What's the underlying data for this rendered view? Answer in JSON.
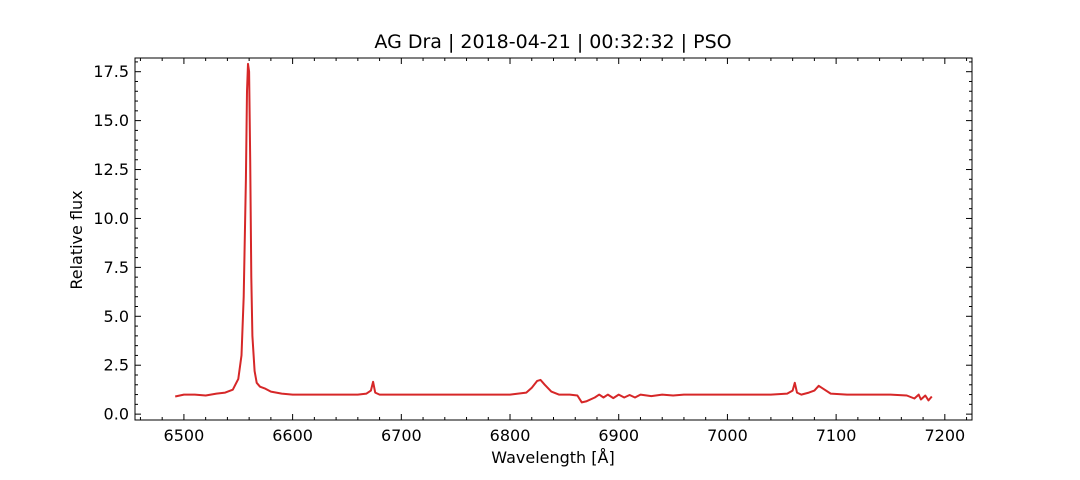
{
  "chart_data": {
    "type": "line",
    "title": "AG Dra | 2018-04-21 | 00:32:32 | PSO",
    "xlabel": "Wavelength [Å]",
    "ylabel": "Relative flux",
    "xlim": [
      6455,
      7225
    ],
    "ylim": [
      -0.3,
      18.2
    ],
    "x_ticks": [
      6500,
      6600,
      6700,
      6800,
      6900,
      7000,
      7100,
      7200
    ],
    "x_tick_labels": [
      "6500",
      "6600",
      "6700",
      "6800",
      "6900",
      "7000",
      "7100",
      "7200"
    ],
    "y_ticks": [
      0.0,
      2.5,
      5.0,
      7.5,
      10.0,
      12.5,
      15.0,
      17.5
    ],
    "y_tick_labels": [
      "0.0",
      "2.5",
      "5.0",
      "7.5",
      "10.0",
      "12.5",
      "15.0",
      "17.5"
    ],
    "grid": false,
    "series": [
      {
        "color": "#d62728",
        "x": [
          6492,
          6500,
          6510,
          6520,
          6530,
          6538,
          6545,
          6550,
          6553,
          6555,
          6557,
          6558,
          6559,
          6560,
          6561,
          6562,
          6563,
          6565,
          6567,
          6570,
          6575,
          6580,
          6590,
          6600,
          6620,
          6640,
          6660,
          6668,
          6672,
          6674,
          6676,
          6680,
          6700,
          6720,
          6740,
          6760,
          6780,
          6800,
          6815,
          6820,
          6825,
          6828,
          6832,
          6838,
          6845,
          6855,
          6862,
          6866,
          6870,
          6878,
          6882,
          6886,
          6890,
          6895,
          6900,
          6905,
          6910,
          6915,
          6920,
          6930,
          6940,
          6950,
          6960,
          6980,
          7000,
          7020,
          7040,
          7055,
          7060,
          7062,
          7064,
          7068,
          7075,
          7080,
          7084,
          7088,
          7095,
          7110,
          7130,
          7150,
          7165,
          7172,
          7176,
          7178,
          7182,
          7185,
          7188
        ],
        "y": [
          0.9,
          1.0,
          1.0,
          0.95,
          1.05,
          1.1,
          1.25,
          1.8,
          3.0,
          6.0,
          12.0,
          16.5,
          17.9,
          17.5,
          13.0,
          7.0,
          4.0,
          2.2,
          1.6,
          1.4,
          1.3,
          1.15,
          1.05,
          1.0,
          1.0,
          1.0,
          1.0,
          1.05,
          1.2,
          1.65,
          1.1,
          1.0,
          1.0,
          1.0,
          1.0,
          1.0,
          1.0,
          1.0,
          1.1,
          1.35,
          1.7,
          1.75,
          1.5,
          1.15,
          1.0,
          1.0,
          0.95,
          0.6,
          0.65,
          0.85,
          1.0,
          0.85,
          1.0,
          0.82,
          1.0,
          0.85,
          0.98,
          0.85,
          1.0,
          0.92,
          1.0,
          0.95,
          1.0,
          1.0,
          1.0,
          1.0,
          1.0,
          1.05,
          1.2,
          1.6,
          1.1,
          1.0,
          1.1,
          1.2,
          1.45,
          1.3,
          1.05,
          1.0,
          1.0,
          1.0,
          0.95,
          0.8,
          1.0,
          0.75,
          0.95,
          0.7,
          0.9
        ]
      }
    ]
  }
}
